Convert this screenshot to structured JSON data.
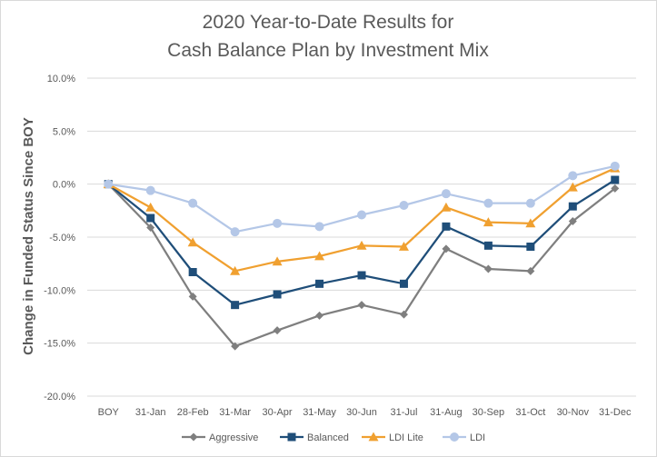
{
  "chart_data": {
    "type": "line",
    "title_lines": [
      "2020 Year-to-Date Results for",
      "Cash Balance Plan by Investment Mix"
    ],
    "ylabel": "Change in Funded Status Since BOY",
    "xlabel": "",
    "categories": [
      "BOY",
      "31-Jan",
      "28-Feb",
      "31-Mar",
      "30-Apr",
      "31-May",
      "30-Jun",
      "31-Jul",
      "31-Aug",
      "30-Sep",
      "31-Oct",
      "30-Nov",
      "31-Dec"
    ],
    "ylim": [
      -20,
      10
    ],
    "yticks": [
      10,
      5,
      0,
      -5,
      -10,
      -15,
      -20
    ],
    "ytick_labels": [
      "10.0%",
      "5.0%",
      "0.0%",
      "-5.0%",
      "-10.0%",
      "-15.0%",
      "-20.0%"
    ],
    "grid": true,
    "legend_position": "bottom",
    "series": [
      {
        "name": "Aggressive",
        "color": "#7f7f7f",
        "marker": "diamond",
        "values": [
          0,
          -4.1,
          -10.6,
          -15.3,
          -13.8,
          -12.4,
          -11.4,
          -12.3,
          -6.1,
          -8.0,
          -8.2,
          -3.5,
          -0.4
        ]
      },
      {
        "name": "Balanced",
        "color": "#1f4e79",
        "marker": "square",
        "values": [
          0,
          -3.2,
          -8.3,
          -11.4,
          -10.4,
          -9.4,
          -8.6,
          -9.4,
          -4.0,
          -5.8,
          -5.9,
          -2.1,
          0.4
        ]
      },
      {
        "name": "LDI Lite",
        "color": "#f0a030",
        "marker": "triangle",
        "values": [
          0,
          -2.2,
          -5.5,
          -8.2,
          -7.3,
          -6.8,
          -5.8,
          -5.9,
          -2.2,
          -3.6,
          -3.7,
          -0.3,
          1.5
        ]
      },
      {
        "name": "LDI",
        "color": "#b4c7e7",
        "marker": "circle",
        "values": [
          0,
          -0.6,
          -1.8,
          -4.5,
          -3.7,
          -4.0,
          -2.9,
          -2.0,
          -0.9,
          -1.8,
          -1.8,
          0.8,
          1.7
        ]
      }
    ]
  }
}
